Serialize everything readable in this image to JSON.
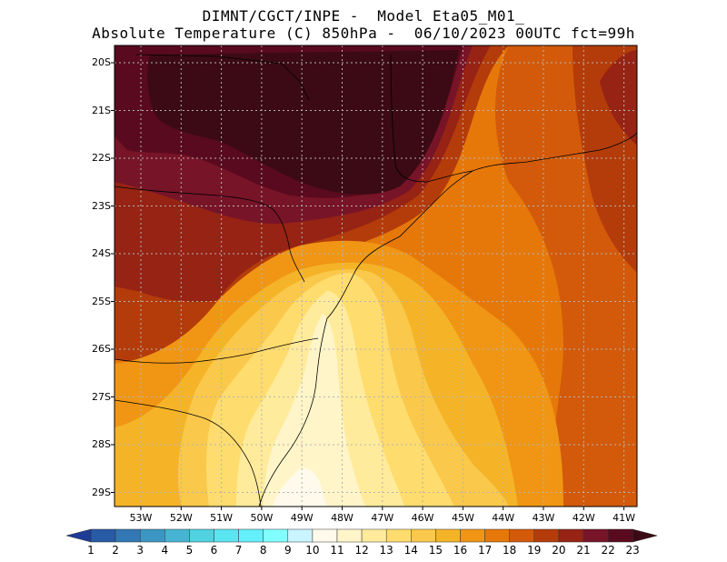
{
  "header": {
    "line1": "DIMNT/CGCT/INPE -  Model Eta05_M01_",
    "line2": "Absolute Temperature (C) 850hPa -  06/10/2023 00UTC fct=99h"
  },
  "map": {
    "lat_labels": [
      "20S",
      "21S",
      "22S",
      "23S",
      "24S",
      "25S",
      "26S",
      "27S",
      "28S",
      "29S"
    ],
    "lon_labels": [
      "53W",
      "52W",
      "51W",
      "50W",
      "49W",
      "48W",
      "47W",
      "46W",
      "45W",
      "44W",
      "43W",
      "42W",
      "41W"
    ],
    "gridline_color": "#b4b4b4",
    "coastline_color": "#000000"
  },
  "colorbar": {
    "labels": [
      "1",
      "2",
      "3",
      "4",
      "5",
      "6",
      "7",
      "8",
      "9",
      "10",
      "11",
      "12",
      "13",
      "14",
      "15",
      "16",
      "17",
      "18",
      "19",
      "20",
      "21",
      "22",
      "23"
    ],
    "colors": [
      "#1e3c96",
      "#285aa5",
      "#3278b4",
      "#3c96c3",
      "#46b4d2",
      "#50d2e1",
      "#5ae6f0",
      "#64f0fa",
      "#82ffff",
      "#c8f5ff",
      "#fffaeb",
      "#fff5c8",
      "#ffeb9b",
      "#ffdc6e",
      "#fac84b",
      "#f5b428",
      "#f09614",
      "#e6780a",
      "#d25a0a",
      "#b43c0a",
      "#962314",
      "#781428",
      "#5a0a1e",
      "#3c0a14"
    ]
  }
}
